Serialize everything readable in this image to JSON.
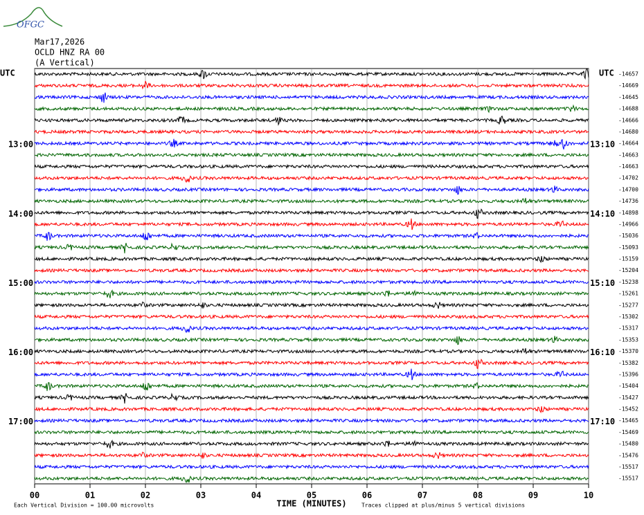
{
  "header": {
    "logo": "OFGC",
    "date": "Mar17,2026",
    "station": "OCLD HNZ RA 00",
    "component": "(A Vertical)"
  },
  "chart_data": {
    "type": "helicorder",
    "left_axis_title": "UTC",
    "right_axis_title": "UTC",
    "left_labels": [
      null,
      null,
      null,
      null,
      null,
      null,
      "13:00",
      null,
      null,
      null,
      null,
      null,
      "14:00",
      null,
      null,
      null,
      null,
      null,
      "15:00",
      null,
      null,
      null,
      null,
      null,
      "16:00",
      null,
      null,
      null,
      null,
      null,
      "17:00",
      null,
      null,
      null,
      null,
      null
    ],
    "right_labels": [
      null,
      null,
      null,
      null,
      null,
      null,
      "13:10",
      null,
      null,
      null,
      null,
      null,
      "14:10",
      null,
      null,
      null,
      null,
      null,
      "15:10",
      null,
      null,
      null,
      null,
      null,
      "16:10",
      null,
      null,
      null,
      null,
      null,
      "17:10",
      null,
      null,
      null,
      null,
      null
    ],
    "offsets": [
      -14657,
      -14669,
      -14645,
      -14688,
      -14666,
      -14680,
      -14664,
      -14663,
      -14663,
      -14702,
      -14700,
      -14736,
      -14898,
      -14966,
      -15036,
      -15093,
      -15159,
      -15204,
      -15238,
      -15261,
      -15277,
      -15302,
      -15317,
      -15353,
      -15370,
      -15382,
      -15396,
      -15404,
      -15427,
      -15452,
      -15465,
      -15469,
      -15480,
      -15476,
      -15517,
      -15517
    ],
    "trace_colors": [
      "#000000",
      "#ff0000",
      "#0000ff",
      "#006400"
    ],
    "xlabel": "TIME (MINUTES)",
    "xlim": [
      0,
      10
    ],
    "xticks": [
      {
        "value": 0,
        "label": "00"
      },
      {
        "value": 1,
        "label": "01"
      },
      {
        "value": 2,
        "label": "02"
      },
      {
        "value": 3,
        "label": "03"
      },
      {
        "value": 4,
        "label": "04"
      },
      {
        "value": 5,
        "label": "05"
      },
      {
        "value": 6,
        "label": "06"
      },
      {
        "value": 7,
        "label": "07"
      },
      {
        "value": 8,
        "label": "08"
      },
      {
        "value": 9,
        "label": "09"
      },
      {
        "value": 10,
        "label": "10"
      }
    ],
    "scale_note": "Each Vertical Division =  100.00 microvolts",
    "clip_note": "Traces clipped at plus/minus 5 vertical divisions"
  }
}
